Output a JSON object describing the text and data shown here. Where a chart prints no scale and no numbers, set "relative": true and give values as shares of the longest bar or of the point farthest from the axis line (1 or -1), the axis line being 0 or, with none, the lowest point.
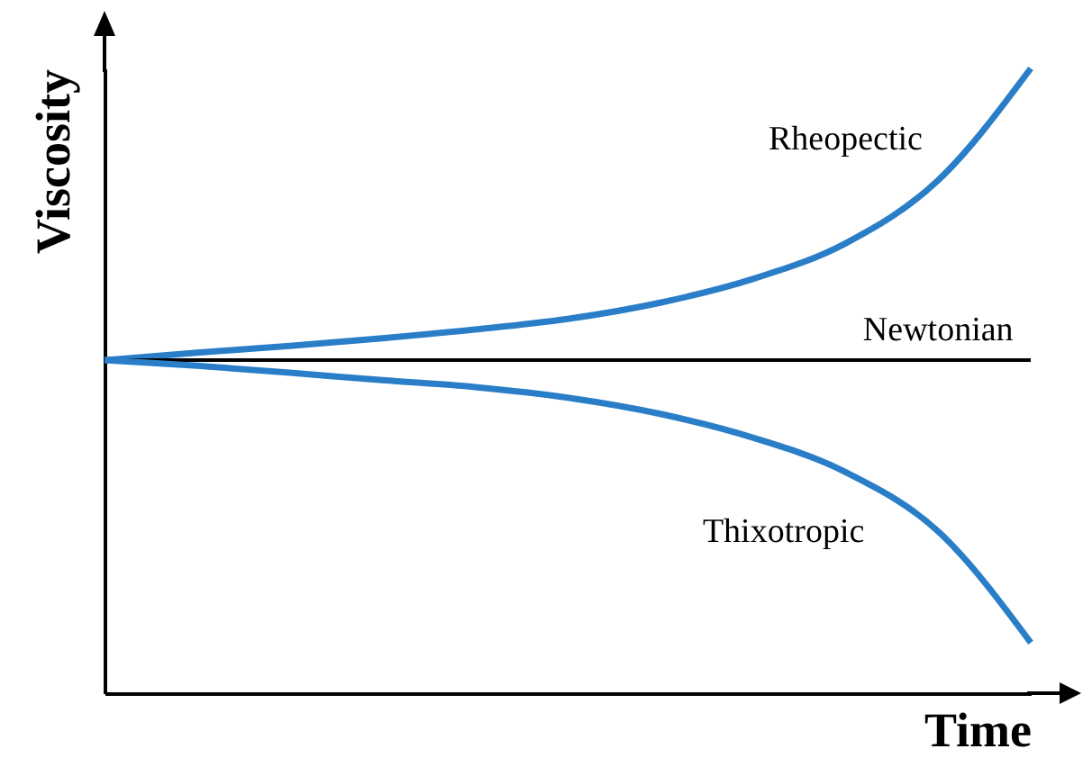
{
  "chart_data": {
    "type": "line",
    "relative": true,
    "xlabel": "Time",
    "ylabel": "Viscosity",
    "categories": [
      null,
      null,
      null,
      null,
      null,
      null,
      null,
      null,
      null,
      null,
      null
    ],
    "series": [
      {
        "name": "Rheopectic",
        "color": "#2a7ec8",
        "values": [
          0.533,
          0.545,
          0.556,
          0.568,
          0.582,
          0.599,
          0.625,
          0.663,
          0.72,
          0.821,
          1
        ]
      },
      {
        "name": "Newtonian",
        "color": "#000000",
        "values": [
          0.533,
          0.533,
          0.533,
          0.533,
          0.533,
          0.533,
          0.533,
          0.533,
          0.533,
          0.533,
          0.533
        ]
      },
      {
        "name": "Thixotropic",
        "color": "#2a7ec8",
        "values": [
          0.533,
          0.524,
          0.513,
          0.501,
          0.49,
          0.473,
          0.447,
          0.409,
          0.354,
          0.259,
          0.081
        ]
      }
    ]
  }
}
